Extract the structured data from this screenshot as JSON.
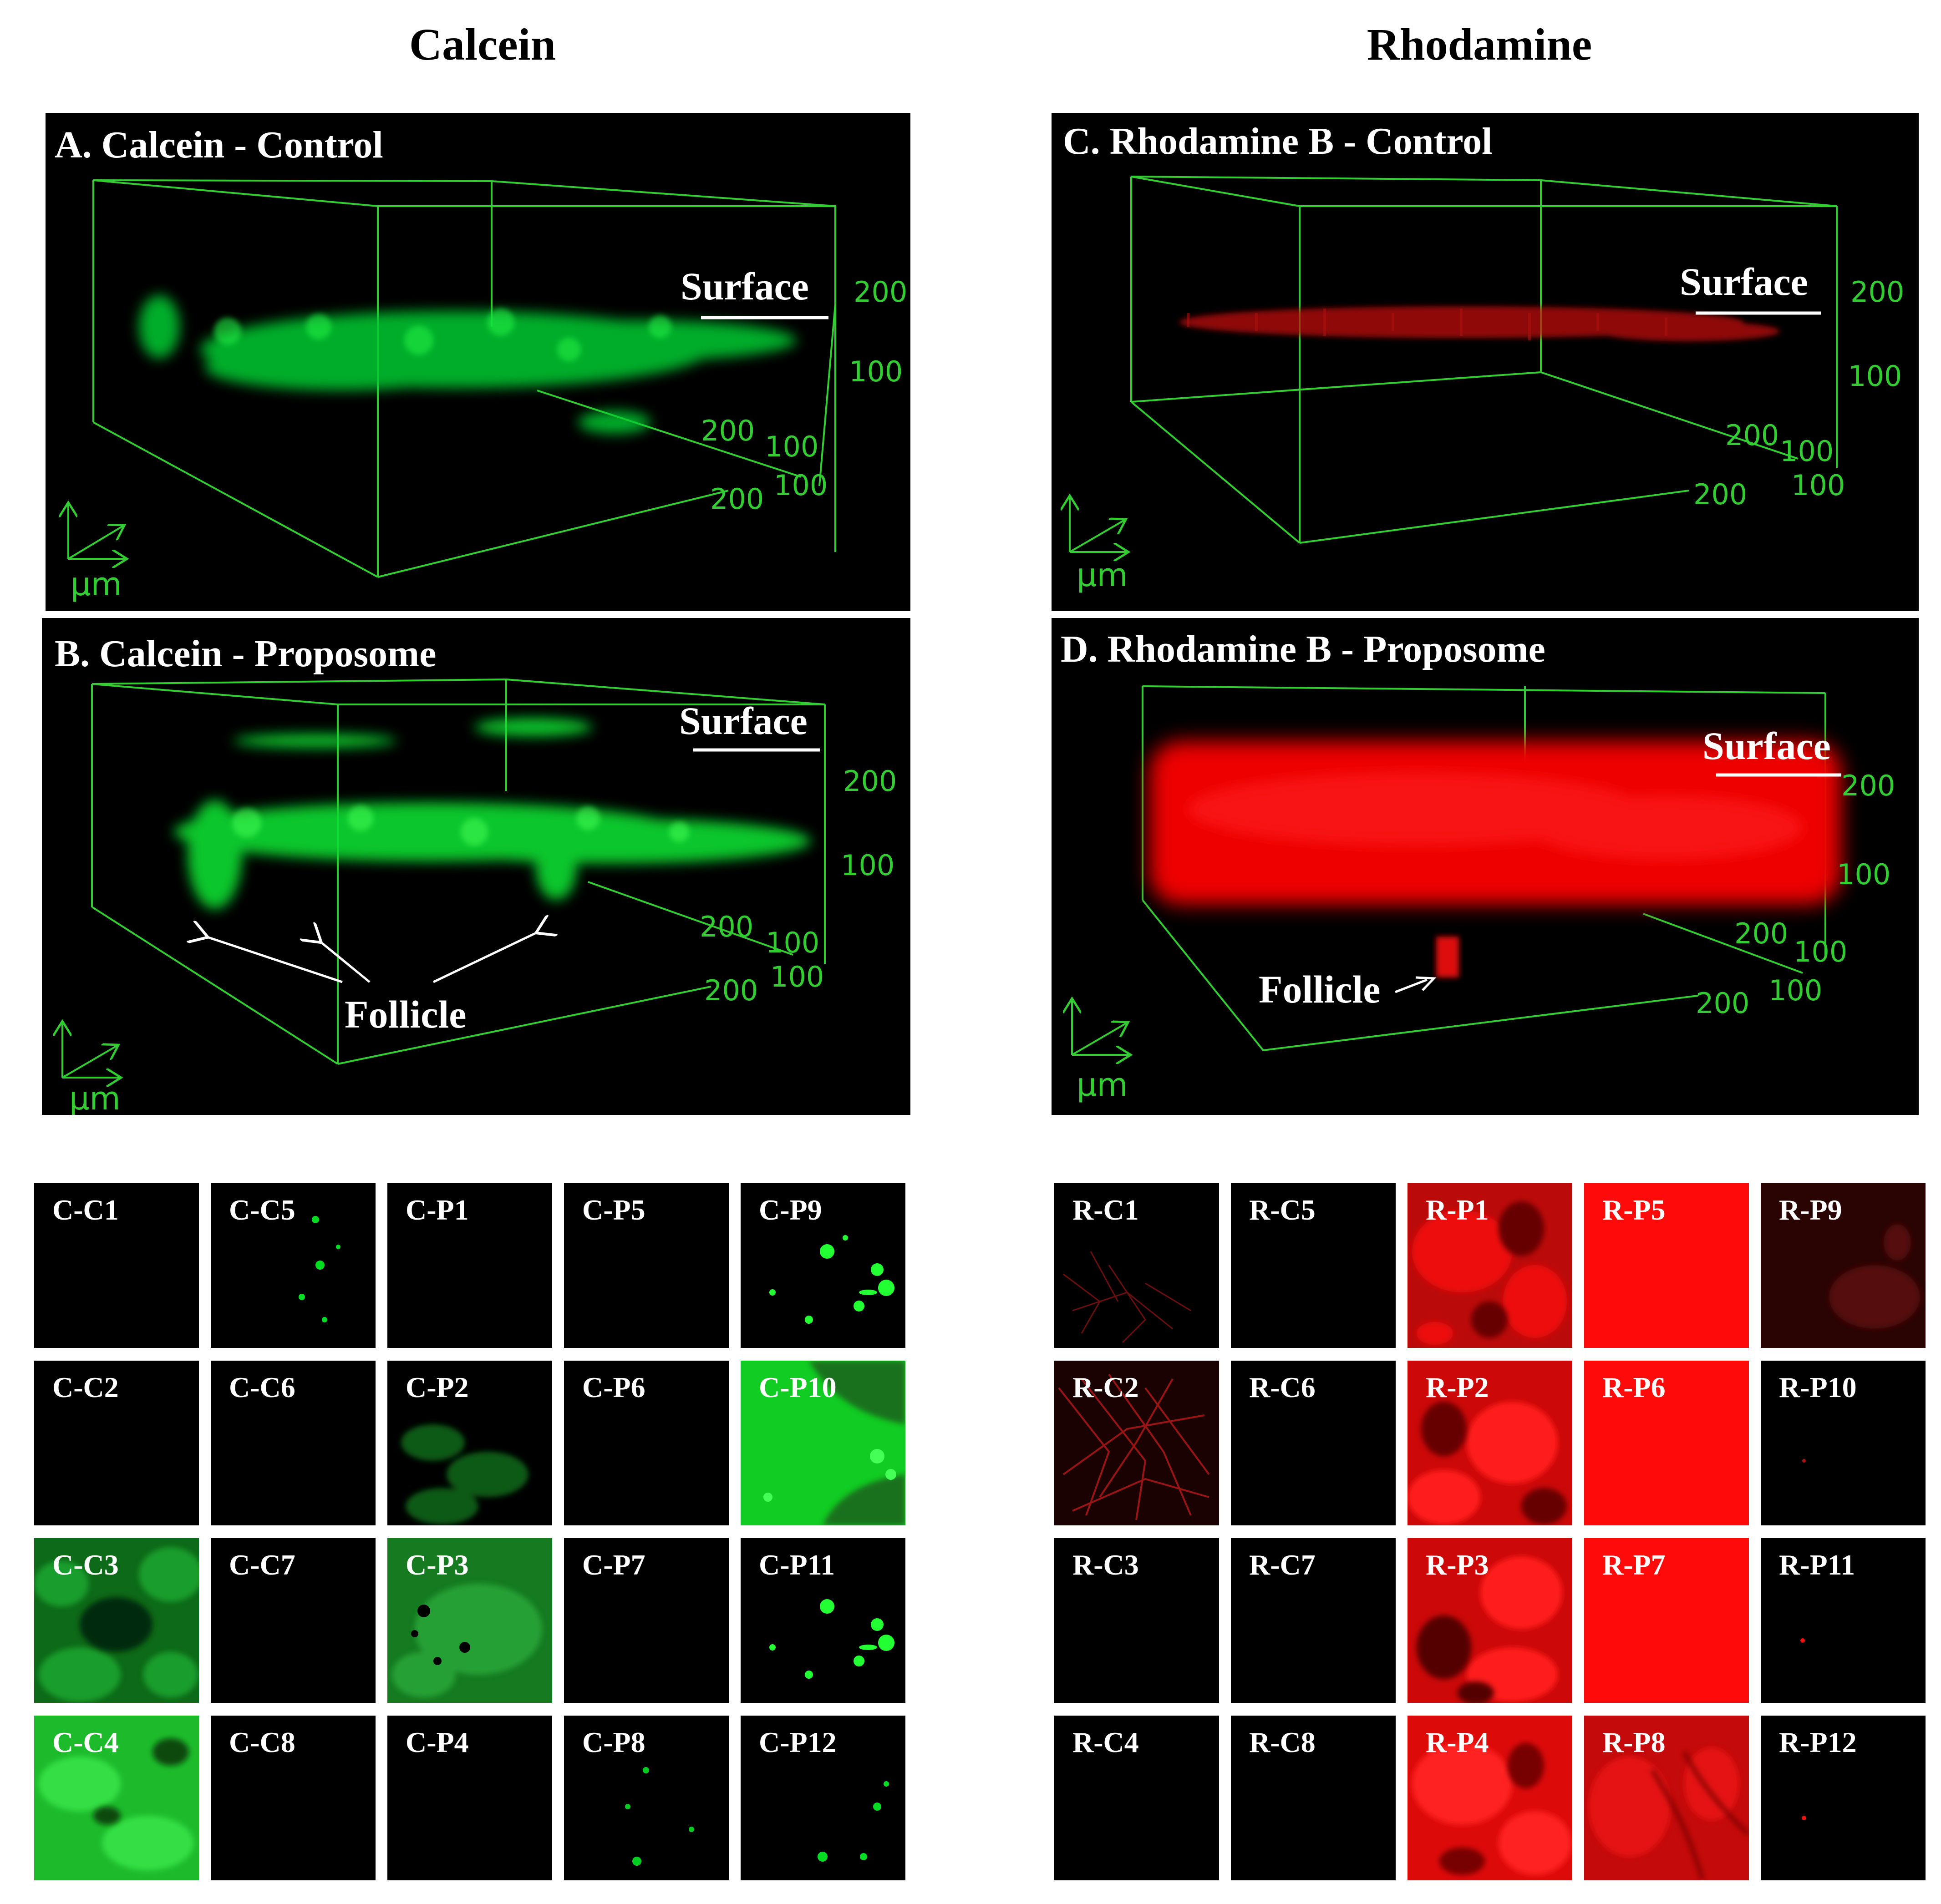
{
  "columns": {
    "left": "Calcein",
    "right": "Rhodamine"
  },
  "panels": {
    "A": {
      "title": "A. Calcein - Control",
      "surface": "Surface",
      "ticks": {
        "z1": "200",
        "z2": "100",
        "y1": "200",
        "y2": "100",
        "y3": "100",
        "x1": "200"
      },
      "unit": "µm"
    },
    "B": {
      "title": "B. Calcein - Proposome",
      "surface": "Surface",
      "follicle": "Follicle",
      "ticks": {
        "z1": "200",
        "z2": "100",
        "y1": "200",
        "y2": "100",
        "y3": "100",
        "x1": "200"
      },
      "unit": "µm"
    },
    "C": {
      "title": "C. Rhodamine B - Control",
      "surface": "Surface",
      "ticks": {
        "z1": "200",
        "z2": "100",
        "y1": "200",
        "y2": "100",
        "y3": "100",
        "x1": "200"
      },
      "unit": "µm"
    },
    "D": {
      "title": "D. Rhodamine B - Proposome",
      "surface": "Surface",
      "follicle": "Follicle",
      "ticks": {
        "z1": "200",
        "z2": "100",
        "y1": "200",
        "y2": "100",
        "y3": "100",
        "x1": "200"
      },
      "unit": "µm"
    }
  },
  "calcein_tiles": [
    [
      "C-C1",
      "C-C5",
      "C-P1",
      "C-P5",
      "C-P9"
    ],
    [
      "C-C2",
      "C-C6",
      "C-P2",
      "C-P6",
      "C-P10"
    ],
    [
      "C-C3",
      "C-C7",
      "C-P3",
      "C-P7",
      "C-P11"
    ],
    [
      "C-C4",
      "C-C8",
      "C-P4",
      "C-P8",
      "C-P12"
    ]
  ],
  "rhodamine_tiles": [
    [
      "R-C1",
      "R-C5",
      "R-P1",
      "R-P5",
      "R-P9"
    ],
    [
      "R-C2",
      "R-C6",
      "R-P2",
      "R-P6",
      "R-P10"
    ],
    [
      "R-C3",
      "R-C7",
      "R-P3",
      "R-P7",
      "R-P11"
    ],
    [
      "R-C4",
      "R-C8",
      "R-P4",
      "R-P8",
      "R-P12"
    ]
  ],
  "colors": {
    "green": "#00ff00",
    "red": "#ff0000",
    "axis": "#33cc33"
  }
}
